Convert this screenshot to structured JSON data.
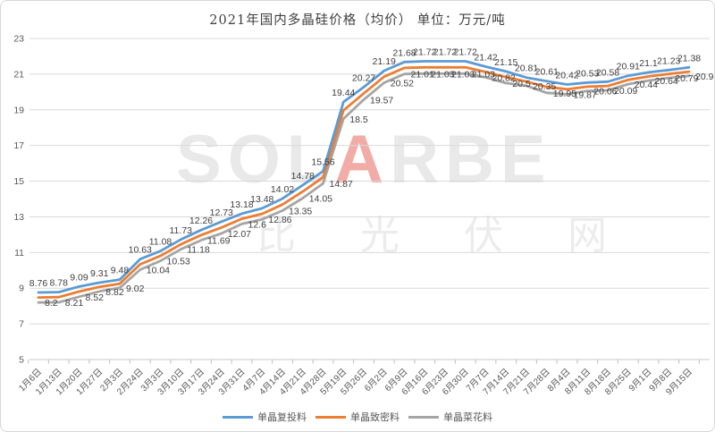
{
  "title": "2021年国内多晶硅价格（均价） 单位：万元/吨",
  "watermark": {
    "brand_left": "SOL",
    "brand_accent": "A",
    "brand_right": "RBE",
    "cn_text": "比光伏网"
  },
  "colors": {
    "series_blue": "#5B9BD5",
    "series_orange": "#ED7D31",
    "series_gray": "#A5A5A5",
    "gridline": "#D9D9D9",
    "axis_text": "#595959",
    "data_label": "#404040"
  },
  "chart_data": {
    "type": "line",
    "title": "2021年国内多晶硅价格（均价） 单位：万元/吨",
    "unit": "万元/吨",
    "categories": [
      "1月6日",
      "1月13日",
      "1月20日",
      "1月27日",
      "2月3日",
      "2月24日",
      "3月3日",
      "3月10日",
      "3月17日",
      "3月24日",
      "3月31日",
      "4月7日",
      "4月14日",
      "4月21日",
      "4月28日",
      "5月19日",
      "5月26日",
      "6月2日",
      "6月9日",
      "6月16日",
      "6月23日",
      "6月30日",
      "7月7日",
      "7月14日",
      "7月21日",
      "7月28日",
      "8月4日",
      "8月11日",
      "8月18日",
      "8月25日",
      "9月1日",
      "9月8日",
      "9月15日"
    ],
    "ylim": [
      5,
      23
    ],
    "yticks": [
      5,
      7,
      9,
      11,
      13,
      15,
      17,
      19,
      21,
      23
    ],
    "grid": true,
    "legend_position": "bottom",
    "series": [
      {
        "name": "单晶复投料",
        "color": "#5B9BD5",
        "label_position": "above",
        "values": [
          8.76,
          8.78,
          9.09,
          9.31,
          9.48,
          10.63,
          11.08,
          11.73,
          12.26,
          12.73,
          13.18,
          13.48,
          14.02,
          14.78,
          15.56,
          19.44,
          20.27,
          21.19,
          21.68,
          21.72,
          21.72,
          21.72,
          21.42,
          21.15,
          20.81,
          20.61,
          20.42,
          20.53,
          20.58,
          20.91,
          21.1,
          21.23,
          21.38
        ]
      },
      {
        "name": "单晶致密料",
        "color": "#ED7D31",
        "label_position": "none",
        "values_estimated_from_line": true,
        "values": [
          8.48,
          8.5,
          8.81,
          9.07,
          9.25,
          10.34,
          10.81,
          11.46,
          11.98,
          12.4,
          12.89,
          13.17,
          13.69,
          14.42,
          15.22,
          18.97,
          19.92,
          20.86,
          21.35,
          21.38,
          21.38,
          21.38,
          21.12,
          20.83,
          20.58,
          20.28,
          20.15,
          20.3,
          20.34,
          20.68,
          20.87,
          21.01,
          21.14
        ]
      },
      {
        "name": "单晶菜花料",
        "color": "#A5A5A5",
        "label_position": "right",
        "values": [
          8.2,
          8.21,
          8.52,
          8.82,
          9.02,
          10.04,
          10.53,
          11.18,
          11.69,
          12.07,
          12.6,
          12.86,
          13.35,
          14.05,
          14.87,
          18.5,
          19.57,
          20.52,
          21.01,
          21.03,
          21.03,
          21.03,
          20.82,
          20.5,
          20.35,
          19.95,
          19.87,
          20.06,
          20.09,
          20.44,
          20.64,
          20.79,
          20.9
        ]
      }
    ]
  }
}
